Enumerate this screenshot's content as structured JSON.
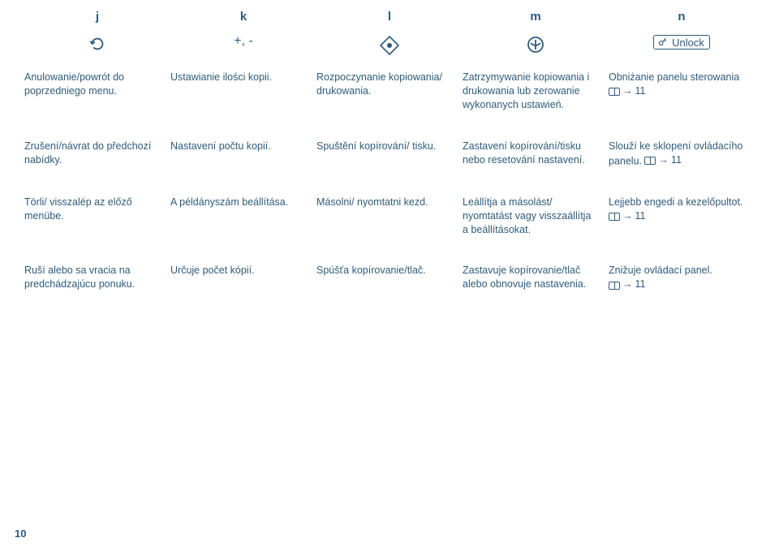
{
  "headers": [
    "j",
    "k",
    "l",
    "m",
    "n"
  ],
  "icons": {
    "j": "undo",
    "k_text": "+, -",
    "l": "diamond",
    "m": "circle-stop",
    "n_label": "Unlock"
  },
  "rows": [
    {
      "cells": [
        "Anulowanie/powrót do poprzedniego menu.",
        "Ustawianie ilości kopii.",
        "Rozpoczynanie kopiowania/ drukowania.",
        "Zatrzymywanie kopiowania i drukowania lub zerowanie wykonanych ustawień.",
        "Obniżanie panelu sterowania"
      ],
      "ref_last": "11"
    },
    {
      "cells": [
        "Zrušení/návrat do předchozí nabídky.",
        "Nastavení počtu kopií.",
        "Spuštění kopírování/ tisku.",
        "Zastavení kopírování/tisku nebo resetování nastavení.",
        "Slouží ke sklopení ovládacího panelu."
      ],
      "ref_last": "11"
    },
    {
      "cells": [
        "Törli/ visszalép az előző menübe.",
        "A példányszám beállítása.",
        "Másolni/ nyomtatni kezd.",
        "Leállítja a másolást/ nyomtatást vagy visszaállítja a beállításokat.",
        "Lejjebb engedi a kezelőpultot."
      ],
      "ref_last": "11"
    },
    {
      "cells": [
        "Ruší alebo sa vracia na predchádzajúcu ponuku.",
        "Určuje počet kópií.",
        "Spúšťa kopírovanie/tlač.",
        "Zastavuje kopírovanie/tlač alebo obnovuje nastavenia.",
        "Znižuje ovládací panel."
      ],
      "ref_last": "11"
    }
  ],
  "page_number": "10"
}
